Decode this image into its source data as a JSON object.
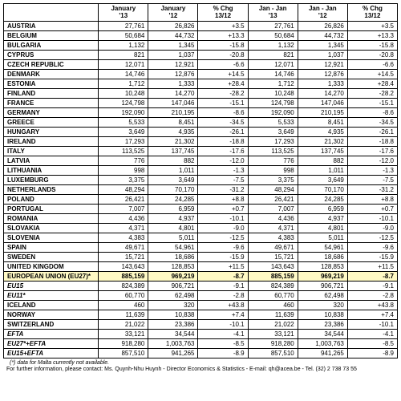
{
  "headers": [
    "",
    "January\n'13",
    "January\n'12",
    "% Chg\n13/12",
    "Jan - Jan\n'13",
    "Jan - Jan\n'12",
    "% Chg\n13/12"
  ],
  "rows": [
    {
      "c": "AUSTRIA",
      "v": [
        "27,761",
        "26,826",
        "+3.5",
        "27,761",
        "26,826",
        "+3.5"
      ]
    },
    {
      "c": "BELGIUM",
      "v": [
        "50,684",
        "44,732",
        "+13.3",
        "50,684",
        "44,732",
        "+13.3"
      ]
    },
    {
      "c": "BULGARIA",
      "v": [
        "1,132",
        "1,345",
        "-15.8",
        "1,132",
        "1,345",
        "-15.8"
      ]
    },
    {
      "c": "CYPRUS",
      "v": [
        "821",
        "1,037",
        "-20.8",
        "821",
        "1,037",
        "-20.8"
      ]
    },
    {
      "c": "CZECH REPUBLIC",
      "v": [
        "12,071",
        "12,921",
        "-6.6",
        "12,071",
        "12,921",
        "-6.6"
      ]
    },
    {
      "c": "DENMARK",
      "v": [
        "14,746",
        "12,876",
        "+14.5",
        "14,746",
        "12,876",
        "+14.5"
      ]
    },
    {
      "c": "ESTONIA",
      "v": [
        "1,712",
        "1,333",
        "+28.4",
        "1,712",
        "1,333",
        "+28.4"
      ]
    },
    {
      "c": "FINLAND",
      "v": [
        "10,248",
        "14,270",
        "-28.2",
        "10,248",
        "14,270",
        "-28.2"
      ]
    },
    {
      "c": "FRANCE",
      "v": [
        "124,798",
        "147,046",
        "-15.1",
        "124,798",
        "147,046",
        "-15.1"
      ]
    },
    {
      "c": "GERMANY",
      "v": [
        "192,090",
        "210,195",
        "-8.6",
        "192,090",
        "210,195",
        "-8.6"
      ]
    },
    {
      "c": "GREECE",
      "v": [
        "5,533",
        "8,451",
        "-34.5",
        "5,533",
        "8,451",
        "-34.5"
      ]
    },
    {
      "c": "HUNGARY",
      "v": [
        "3,649",
        "4,935",
        "-26.1",
        "3,649",
        "4,935",
        "-26.1"
      ]
    },
    {
      "c": "IRELAND",
      "v": [
        "17,293",
        "21,302",
        "-18.8",
        "17,293",
        "21,302",
        "-18.8"
      ]
    },
    {
      "c": "ITALY",
      "v": [
        "113,525",
        "137,745",
        "-17.6",
        "113,525",
        "137,745",
        "-17.6"
      ]
    },
    {
      "c": "LATVIA",
      "v": [
        "776",
        "882",
        "-12.0",
        "776",
        "882",
        "-12.0"
      ]
    },
    {
      "c": "LITHUANIA",
      "v": [
        "998",
        "1,011",
        "-1.3",
        "998",
        "1,011",
        "-1.3"
      ]
    },
    {
      "c": "LUXEMBURG",
      "v": [
        "3,375",
        "3,649",
        "-7.5",
        "3,375",
        "3,649",
        "-7.5"
      ]
    },
    {
      "c": "NETHERLANDS",
      "v": [
        "48,294",
        "70,170",
        "-31.2",
        "48,294",
        "70,170",
        "-31.2"
      ]
    },
    {
      "c": "POLAND",
      "v": [
        "26,421",
        "24,285",
        "+8.8",
        "26,421",
        "24,285",
        "+8.8"
      ]
    },
    {
      "c": "PORTUGAL",
      "v": [
        "7,007",
        "6,959",
        "+0.7",
        "7,007",
        "6,959",
        "+0.7"
      ]
    },
    {
      "c": "ROMANIA",
      "v": [
        "4,436",
        "4,937",
        "-10.1",
        "4,436",
        "4,937",
        "-10.1"
      ]
    },
    {
      "c": "SLOVAKIA",
      "v": [
        "4,371",
        "4,801",
        "-9.0",
        "4,371",
        "4,801",
        "-9.0"
      ]
    },
    {
      "c": "SLOVENIA",
      "v": [
        "4,383",
        "5,011",
        "-12.5",
        "4,383",
        "5,011",
        "-12.5"
      ]
    },
    {
      "c": "SPAIN",
      "v": [
        "49,671",
        "54,961",
        "-9.6",
        "49,671",
        "54,961",
        "-9.6"
      ]
    },
    {
      "c": "SWEDEN",
      "v": [
        "15,721",
        "18,686",
        "-15.9",
        "15,721",
        "18,686",
        "-15.9"
      ]
    },
    {
      "c": "UNITED KINGDOM",
      "v": [
        "143,643",
        "128,853",
        "+11.5",
        "143,643",
        "128,853",
        "+11.5"
      ]
    },
    {
      "c": "EUROPEAN UNION (EU27)*",
      "v": [
        "885,159",
        "969,219",
        "-8.7",
        "885,159",
        "969,219",
        "-8.7"
      ],
      "hl": true,
      "bold": true
    },
    {
      "c": "EU15",
      "v": [
        "824,389",
        "906,721",
        "-9.1",
        "824,389",
        "906,721",
        "-9.1"
      ],
      "it": true
    },
    {
      "c": "EU11*",
      "v": [
        "60,770",
        "62,498",
        "-2.8",
        "60,770",
        "62,498",
        "-2.8"
      ],
      "it": true
    },
    {
      "c": "ICELAND",
      "v": [
        "460",
        "320",
        "+43.8",
        "460",
        "320",
        "+43.8"
      ]
    },
    {
      "c": "NORWAY",
      "v": [
        "11,639",
        "10,838",
        "+7.4",
        "11,639",
        "10,838",
        "+7.4"
      ]
    },
    {
      "c": "SWITZERLAND",
      "v": [
        "21,022",
        "23,386",
        "-10.1",
        "21,022",
        "23,386",
        "-10.1"
      ]
    },
    {
      "c": "EFTA",
      "v": [
        "33,121",
        "34,544",
        "-4.1",
        "33,121",
        "34,544",
        "-4.1"
      ],
      "it": true
    },
    {
      "c": "EU27*+EFTA",
      "v": [
        "918,280",
        "1,003,763",
        "-8.5",
        "918,280",
        "1,003,763",
        "-8.5"
      ],
      "it": true
    },
    {
      "c": "EU15+EFTA",
      "v": [
        "857,510",
        "941,265",
        "-8.9",
        "857,510",
        "941,265",
        "-8.9"
      ],
      "it": true
    }
  ],
  "footnote": "(*) data for Malta currently not available.",
  "contact": "For further information, please contact:   Ms. Quynh-Nhu Huynh - Director Economics & Statistics - E-mail: qh@acea.be - Tel. (32) 2 738 73 55"
}
